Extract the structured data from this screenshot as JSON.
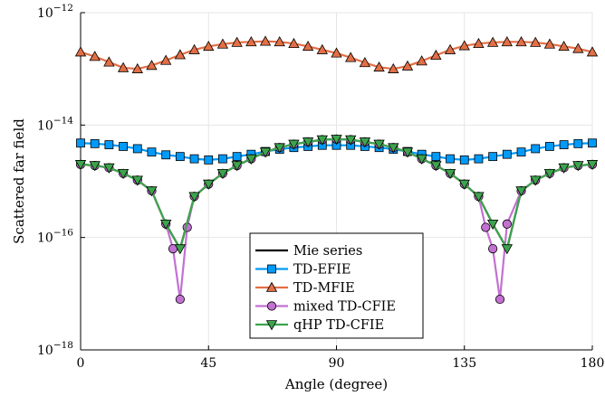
{
  "chart_data": {
    "type": "line",
    "xlabel": "Angle (degree)",
    "ylabel": "Scattered far field",
    "xlim": [
      0,
      180
    ],
    "ylim_exponent": [
      -18,
      -12
    ],
    "y_scale": "log",
    "x_ticks": [
      0,
      45,
      90,
      135,
      180
    ],
    "x_tick_labels": [
      "0",
      "45",
      "90",
      "135",
      "180"
    ],
    "y_ticks_exponent": [
      -18,
      -16,
      -14,
      -12
    ],
    "y_tick_labels": [
      {
        "base": "10",
        "exp": "−18"
      },
      {
        "base": "10",
        "exp": "−16"
      },
      {
        "base": "10",
        "exp": "−14"
      },
      {
        "base": "10",
        "exp": "−12"
      }
    ],
    "grid": true,
    "legend_position": "bottom-center",
    "x": [
      0,
      5,
      10,
      15,
      20,
      25,
      30,
      35,
      40,
      45,
      50,
      55,
      60,
      65,
      70,
      75,
      80,
      85,
      90,
      95,
      100,
      105,
      110,
      115,
      120,
      125,
      130,
      135,
      140,
      145,
      150,
      155,
      160,
      165,
      170,
      175,
      180
    ],
    "series": [
      {
        "name": "Mie series",
        "color": "#000000",
        "marker": "none",
        "log10_values": [
          -14.7,
          -14.72,
          -14.76,
          -14.86,
          -14.98,
          -15.17,
          -15.76,
          -16.2,
          -15.27,
          -15.05,
          -14.86,
          -14.72,
          -14.6,
          -14.48,
          -14.4,
          -14.34,
          -14.3,
          -14.26,
          -14.25,
          -14.26,
          -14.3,
          -14.34,
          -14.4,
          -14.48,
          -14.6,
          -14.72,
          -14.86,
          -15.05,
          -15.27,
          -15.76,
          -16.2,
          -15.17,
          -14.98,
          -14.86,
          -14.76,
          -14.72,
          -14.7
        ]
      },
      {
        "name": "TD-EFIE",
        "color": "#009af9",
        "marker": "square",
        "log10_values": [
          -14.32,
          -14.33,
          -14.35,
          -14.38,
          -14.42,
          -14.48,
          -14.53,
          -14.56,
          -14.6,
          -14.62,
          -14.6,
          -14.56,
          -14.52,
          -14.47,
          -14.43,
          -14.4,
          -14.38,
          -14.36,
          -14.36,
          -14.36,
          -14.38,
          -14.4,
          -14.43,
          -14.47,
          -14.52,
          -14.56,
          -14.6,
          -14.62,
          -14.6,
          -14.56,
          -14.52,
          -14.48,
          -14.42,
          -14.38,
          -14.35,
          -14.33,
          -14.32
        ]
      },
      {
        "name": "TD-MFIE",
        "color": "#e26f46",
        "marker": "triangle-up",
        "log10_values": [
          -12.7,
          -12.78,
          -12.88,
          -12.98,
          -13.0,
          -12.94,
          -12.85,
          -12.75,
          -12.66,
          -12.6,
          -12.56,
          -12.53,
          -12.52,
          -12.51,
          -12.52,
          -12.55,
          -12.6,
          -12.66,
          -12.72,
          -12.8,
          -12.89,
          -12.97,
          -13.0,
          -12.95,
          -12.86,
          -12.76,
          -12.66,
          -12.59,
          -12.55,
          -12.53,
          -12.52,
          -12.52,
          -12.53,
          -12.56,
          -12.6,
          -12.64,
          -12.7
        ]
      },
      {
        "name": "mixed TD-CFIE",
        "color": "#c271d2",
        "marker": "circle",
        "log10_values": [
          -14.7,
          -14.72,
          -14.76,
          -14.86,
          -14.98,
          -15.17,
          -15.76,
          -16.2,
          -17.1,
          -15.82,
          -15.27,
          -15.05,
          -14.86,
          -14.72,
          -14.6,
          -14.48,
          -14.4,
          -14.34,
          -14.3,
          -14.26,
          -14.25,
          -14.26,
          -14.3,
          -14.34,
          -14.4,
          -14.48,
          -14.6,
          -14.72,
          -14.86,
          -15.05,
          -15.27,
          -15.82,
          -16.2,
          -17.1,
          -15.76,
          -15.17,
          -14.98,
          -14.86,
          -14.76,
          -14.72,
          -14.7
        ],
        "x": [
          0,
          5,
          10,
          15,
          20,
          25,
          30,
          32.5,
          35,
          37.5,
          40,
          45,
          50,
          55,
          60,
          65,
          70,
          75,
          80,
          85,
          90,
          95,
          100,
          105,
          110,
          115,
          120,
          125,
          130,
          135,
          140,
          142.5,
          145,
          147.5,
          150,
          155,
          160,
          165,
          170,
          175,
          180
        ]
      },
      {
        "name": "qHP TD-CFIE",
        "color": "#3da44d",
        "marker": "triangle-down",
        "log10_values": [
          -14.7,
          -14.72,
          -14.76,
          -14.86,
          -14.98,
          -15.17,
          -15.76,
          -16.2,
          -15.27,
          -15.05,
          -14.86,
          -14.72,
          -14.6,
          -14.48,
          -14.4,
          -14.34,
          -14.3,
          -14.26,
          -14.25,
          -14.26,
          -14.3,
          -14.34,
          -14.4,
          -14.48,
          -14.6,
          -14.72,
          -14.86,
          -15.05,
          -15.27,
          -15.76,
          -16.2,
          -15.17,
          -14.98,
          -14.86,
          -14.76,
          -14.72,
          -14.7
        ]
      }
    ]
  }
}
